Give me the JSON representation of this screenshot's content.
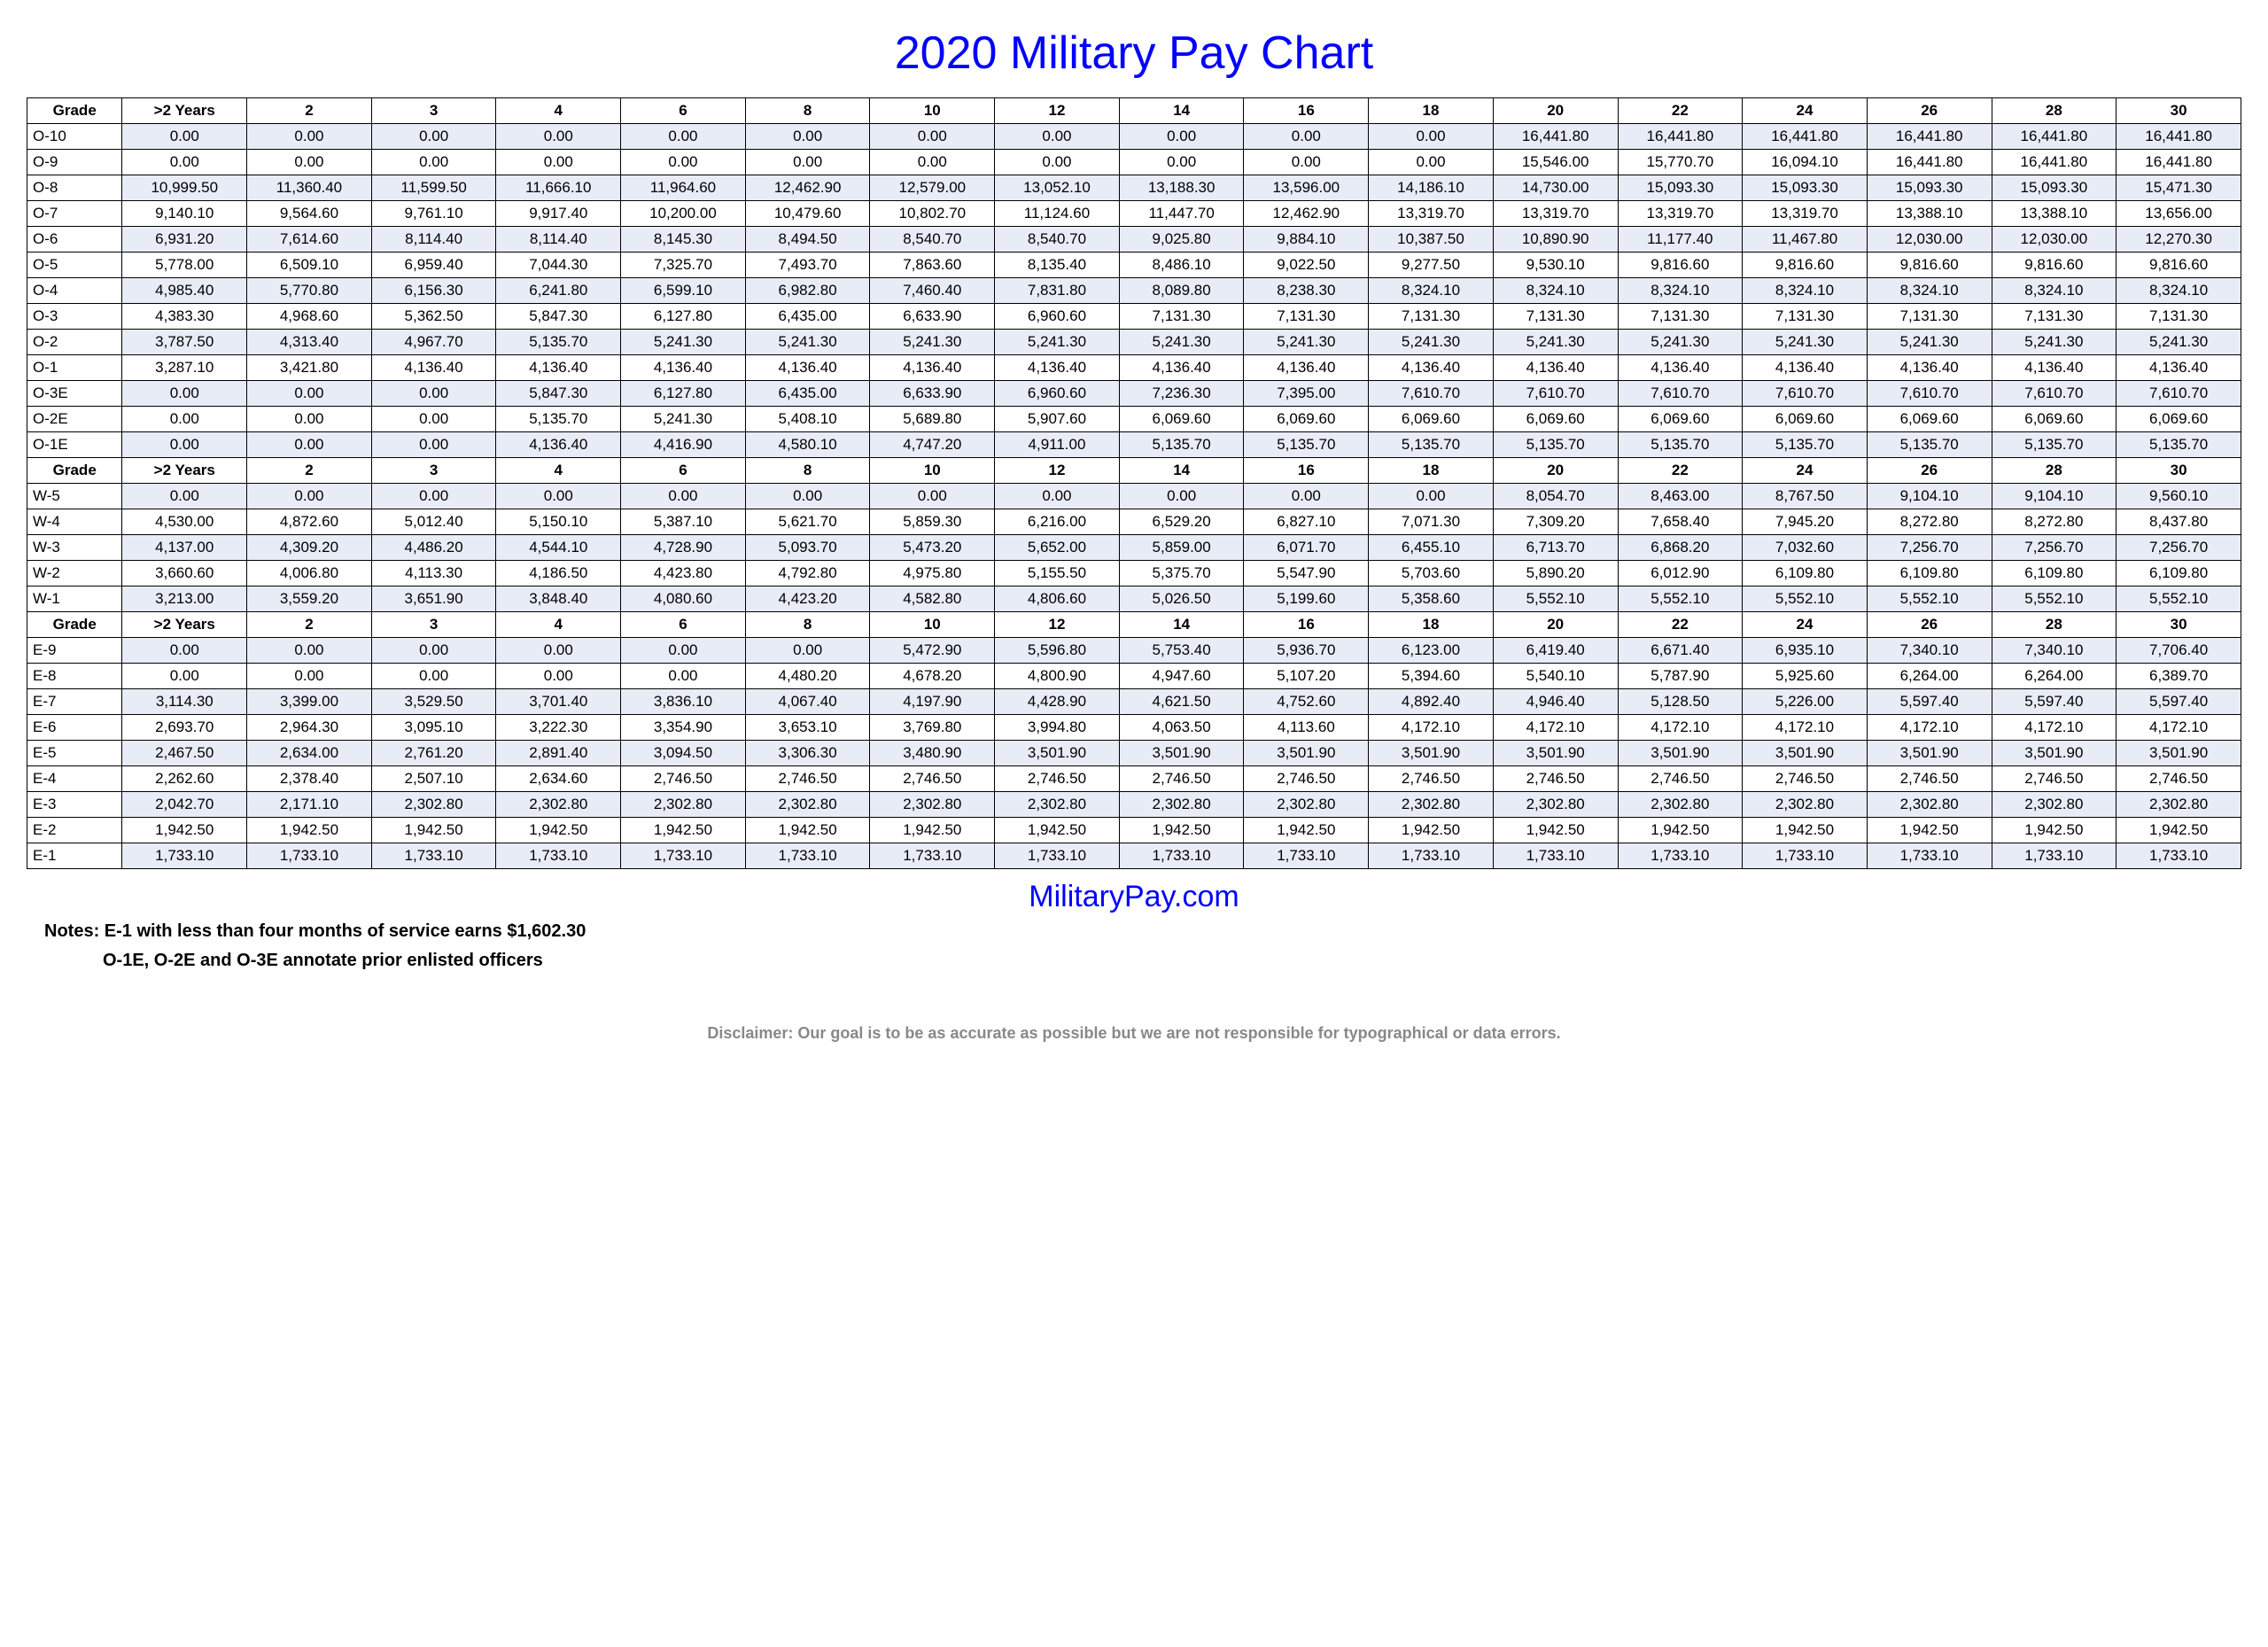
{
  "title": "2020 Military Pay Chart",
  "source": "MilitaryPay.com",
  "notes_line1": "Notes: E-1 with less than four months of service earns $1,602.30",
  "notes_line2": "O-1E, O-2E and O-3E annotate prior enlisted officers",
  "disclaimer": "Disclaimer: Our goal is to be as accurate as possible but we are not responsible for typographical or data errors.",
  "header": [
    "Grade",
    ">2 Years",
    "2",
    "3",
    "4",
    "6",
    "8",
    "10",
    "12",
    "14",
    "16",
    "18",
    "20",
    "22",
    "24",
    "26",
    "28",
    "30"
  ],
  "sections": [
    {
      "rows": [
        {
          "grade": "O-10",
          "shaded": true,
          "vals": [
            "0.00",
            "0.00",
            "0.00",
            "0.00",
            "0.00",
            "0.00",
            "0.00",
            "0.00",
            "0.00",
            "0.00",
            "0.00",
            "16,441.80",
            "16,441.80",
            "16,441.80",
            "16,441.80",
            "16,441.80",
            "16,441.80"
          ]
        },
        {
          "grade": "O-9",
          "shaded": false,
          "vals": [
            "0.00",
            "0.00",
            "0.00",
            "0.00",
            "0.00",
            "0.00",
            "0.00",
            "0.00",
            "0.00",
            "0.00",
            "0.00",
            "15,546.00",
            "15,770.70",
            "16,094.10",
            "16,441.80",
            "16,441.80",
            "16,441.80"
          ]
        },
        {
          "grade": "O-8",
          "shaded": true,
          "vals": [
            "10,999.50",
            "11,360.40",
            "11,599.50",
            "11,666.10",
            "11,964.60",
            "12,462.90",
            "12,579.00",
            "13,052.10",
            "13,188.30",
            "13,596.00",
            "14,186.10",
            "14,730.00",
            "15,093.30",
            "15,093.30",
            "15,093.30",
            "15,093.30",
            "15,471.30"
          ]
        },
        {
          "grade": "O-7",
          "shaded": false,
          "vals": [
            "9,140.10",
            "9,564.60",
            "9,761.10",
            "9,917.40",
            "10,200.00",
            "10,479.60",
            "10,802.70",
            "11,124.60",
            "11,447.70",
            "12,462.90",
            "13,319.70",
            "13,319.70",
            "13,319.70",
            "13,319.70",
            "13,388.10",
            "13,388.10",
            "13,656.00"
          ]
        },
        {
          "grade": "O-6",
          "shaded": true,
          "vals": [
            "6,931.20",
            "7,614.60",
            "8,114.40",
            "8,114.40",
            "8,145.30",
            "8,494.50",
            "8,540.70",
            "8,540.70",
            "9,025.80",
            "9,884.10",
            "10,387.50",
            "10,890.90",
            "11,177.40",
            "11,467.80",
            "12,030.00",
            "12,030.00",
            "12,270.30"
          ]
        },
        {
          "grade": "O-5",
          "shaded": false,
          "vals": [
            "5,778.00",
            "6,509.10",
            "6,959.40",
            "7,044.30",
            "7,325.70",
            "7,493.70",
            "7,863.60",
            "8,135.40",
            "8,486.10",
            "9,022.50",
            "9,277.50",
            "9,530.10",
            "9,816.60",
            "9,816.60",
            "9,816.60",
            "9,816.60",
            "9,816.60"
          ]
        },
        {
          "grade": "O-4",
          "shaded": true,
          "vals": [
            "4,985.40",
            "5,770.80",
            "6,156.30",
            "6,241.80",
            "6,599.10",
            "6,982.80",
            "7,460.40",
            "7,831.80",
            "8,089.80",
            "8,238.30",
            "8,324.10",
            "8,324.10",
            "8,324.10",
            "8,324.10",
            "8,324.10",
            "8,324.10",
            "8,324.10"
          ]
        },
        {
          "grade": "O-3",
          "shaded": false,
          "vals": [
            "4,383.30",
            "4,968.60",
            "5,362.50",
            "5,847.30",
            "6,127.80",
            "6,435.00",
            "6,633.90",
            "6,960.60",
            "7,131.30",
            "7,131.30",
            "7,131.30",
            "7,131.30",
            "7,131.30",
            "7,131.30",
            "7,131.30",
            "7,131.30",
            "7,131.30"
          ]
        },
        {
          "grade": "O-2",
          "shaded": true,
          "vals": [
            "3,787.50",
            "4,313.40",
            "4,967.70",
            "5,135.70",
            "5,241.30",
            "5,241.30",
            "5,241.30",
            "5,241.30",
            "5,241.30",
            "5,241.30",
            "5,241.30",
            "5,241.30",
            "5,241.30",
            "5,241.30",
            "5,241.30",
            "5,241.30",
            "5,241.30"
          ]
        },
        {
          "grade": "O-1",
          "shaded": false,
          "vals": [
            "3,287.10",
            "3,421.80",
            "4,136.40",
            "4,136.40",
            "4,136.40",
            "4,136.40",
            "4,136.40",
            "4,136.40",
            "4,136.40",
            "4,136.40",
            "4,136.40",
            "4,136.40",
            "4,136.40",
            "4,136.40",
            "4,136.40",
            "4,136.40",
            "4,136.40"
          ]
        },
        {
          "grade": "O-3E",
          "shaded": true,
          "vals": [
            "0.00",
            "0.00",
            "0.00",
            "5,847.30",
            "6,127.80",
            "6,435.00",
            "6,633.90",
            "6,960.60",
            "7,236.30",
            "7,395.00",
            "7,610.70",
            "7,610.70",
            "7,610.70",
            "7,610.70",
            "7,610.70",
            "7,610.70",
            "7,610.70"
          ]
        },
        {
          "grade": "O-2E",
          "shaded": false,
          "vals": [
            "0.00",
            "0.00",
            "0.00",
            "5,135.70",
            "5,241.30",
            "5,408.10",
            "5,689.80",
            "5,907.60",
            "6,069.60",
            "6,069.60",
            "6,069.60",
            "6,069.60",
            "6,069.60",
            "6,069.60",
            "6,069.60",
            "6,069.60",
            "6,069.60"
          ]
        },
        {
          "grade": "O-1E",
          "shaded": true,
          "vals": [
            "0.00",
            "0.00",
            "0.00",
            "4,136.40",
            "4,416.90",
            "4,580.10",
            "4,747.20",
            "4,911.00",
            "5,135.70",
            "5,135.70",
            "5,135.70",
            "5,135.70",
            "5,135.70",
            "5,135.70",
            "5,135.70",
            "5,135.70",
            "5,135.70"
          ]
        }
      ]
    },
    {
      "rows": [
        {
          "grade": "W-5",
          "shaded": true,
          "vals": [
            "0.00",
            "0.00",
            "0.00",
            "0.00",
            "0.00",
            "0.00",
            "0.00",
            "0.00",
            "0.00",
            "0.00",
            "0.00",
            "8,054.70",
            "8,463.00",
            "8,767.50",
            "9,104.10",
            "9,104.10",
            "9,560.10"
          ]
        },
        {
          "grade": "W-4",
          "shaded": false,
          "vals": [
            "4,530.00",
            "4,872.60",
            "5,012.40",
            "5,150.10",
            "5,387.10",
            "5,621.70",
            "5,859.30",
            "6,216.00",
            "6,529.20",
            "6,827.10",
            "7,071.30",
            "7,309.20",
            "7,658.40",
            "7,945.20",
            "8,272.80",
            "8,272.80",
            "8,437.80"
          ]
        },
        {
          "grade": "W-3",
          "shaded": true,
          "vals": [
            "4,137.00",
            "4,309.20",
            "4,486.20",
            "4,544.10",
            "4,728.90",
            "5,093.70",
            "5,473.20",
            "5,652.00",
            "5,859.00",
            "6,071.70",
            "6,455.10",
            "6,713.70",
            "6,868.20",
            "7,032.60",
            "7,256.70",
            "7,256.70",
            "7,256.70"
          ]
        },
        {
          "grade": "W-2",
          "shaded": false,
          "vals": [
            "3,660.60",
            "4,006.80",
            "4,113.30",
            "4,186.50",
            "4,423.80",
            "4,792.80",
            "4,975.80",
            "5,155.50",
            "5,375.70",
            "5,547.90",
            "5,703.60",
            "5,890.20",
            "6,012.90",
            "6,109.80",
            "6,109.80",
            "6,109.80",
            "6,109.80"
          ]
        },
        {
          "grade": "W-1",
          "shaded": true,
          "vals": [
            "3,213.00",
            "3,559.20",
            "3,651.90",
            "3,848.40",
            "4,080.60",
            "4,423.20",
            "4,582.80",
            "4,806.60",
            "5,026.50",
            "5,199.60",
            "5,358.60",
            "5,552.10",
            "5,552.10",
            "5,552.10",
            "5,552.10",
            "5,552.10",
            "5,552.10"
          ]
        }
      ]
    },
    {
      "rows": [
        {
          "grade": "E-9",
          "shaded": true,
          "vals": [
            "0.00",
            "0.00",
            "0.00",
            "0.00",
            "0.00",
            "0.00",
            "5,472.90",
            "5,596.80",
            "5,753.40",
            "5,936.70",
            "6,123.00",
            "6,419.40",
            "6,671.40",
            "6,935.10",
            "7,340.10",
            "7,340.10",
            "7,706.40"
          ]
        },
        {
          "grade": "E-8",
          "shaded": false,
          "vals": [
            "0.00",
            "0.00",
            "0.00",
            "0.00",
            "0.00",
            "4,480.20",
            "4,678.20",
            "4,800.90",
            "4,947.60",
            "5,107.20",
            "5,394.60",
            "5,540.10",
            "5,787.90",
            "5,925.60",
            "6,264.00",
            "6,264.00",
            "6,389.70"
          ]
        },
        {
          "grade": "E-7",
          "shaded": true,
          "vals": [
            "3,114.30",
            "3,399.00",
            "3,529.50",
            "3,701.40",
            "3,836.10",
            "4,067.40",
            "4,197.90",
            "4,428.90",
            "4,621.50",
            "4,752.60",
            "4,892.40",
            "4,946.40",
            "5,128.50",
            "5,226.00",
            "5,597.40",
            "5,597.40",
            "5,597.40"
          ]
        },
        {
          "grade": "E-6",
          "shaded": false,
          "vals": [
            "2,693.70",
            "2,964.30",
            "3,095.10",
            "3,222.30",
            "3,354.90",
            "3,653.10",
            "3,769.80",
            "3,994.80",
            "4,063.50",
            "4,113.60",
            "4,172.10",
            "4,172.10",
            "4,172.10",
            "4,172.10",
            "4,172.10",
            "4,172.10",
            "4,172.10"
          ]
        },
        {
          "grade": "E-5",
          "shaded": true,
          "vals": [
            "2,467.50",
            "2,634.00",
            "2,761.20",
            "2,891.40",
            "3,094.50",
            "3,306.30",
            "3,480.90",
            "3,501.90",
            "3,501.90",
            "3,501.90",
            "3,501.90",
            "3,501.90",
            "3,501.90",
            "3,501.90",
            "3,501.90",
            "3,501.90",
            "3,501.90"
          ]
        },
        {
          "grade": "E-4",
          "shaded": false,
          "vals": [
            "2,262.60",
            "2,378.40",
            "2,507.10",
            "2,634.60",
            "2,746.50",
            "2,746.50",
            "2,746.50",
            "2,746.50",
            "2,746.50",
            "2,746.50",
            "2,746.50",
            "2,746.50",
            "2,746.50",
            "2,746.50",
            "2,746.50",
            "2,746.50",
            "2,746.50"
          ]
        },
        {
          "grade": "E-3",
          "shaded": true,
          "vals": [
            "2,042.70",
            "2,171.10",
            "2,302.80",
            "2,302.80",
            "2,302.80",
            "2,302.80",
            "2,302.80",
            "2,302.80",
            "2,302.80",
            "2,302.80",
            "2,302.80",
            "2,302.80",
            "2,302.80",
            "2,302.80",
            "2,302.80",
            "2,302.80",
            "2,302.80"
          ]
        },
        {
          "grade": "E-2",
          "shaded": false,
          "vals": [
            "1,942.50",
            "1,942.50",
            "1,942.50",
            "1,942.50",
            "1,942.50",
            "1,942.50",
            "1,942.50",
            "1,942.50",
            "1,942.50",
            "1,942.50",
            "1,942.50",
            "1,942.50",
            "1,942.50",
            "1,942.50",
            "1,942.50",
            "1,942.50",
            "1,942.50"
          ]
        },
        {
          "grade": "E-1",
          "shaded": true,
          "vals": [
            "1,733.10",
            "1,733.10",
            "1,733.10",
            "1,733.10",
            "1,733.10",
            "1,733.10",
            "1,733.10",
            "1,733.10",
            "1,733.10",
            "1,733.10",
            "1,733.10",
            "1,733.10",
            "1,733.10",
            "1,733.10",
            "1,733.10",
            "1,733.10",
            "1,733.10"
          ]
        }
      ]
    }
  ]
}
